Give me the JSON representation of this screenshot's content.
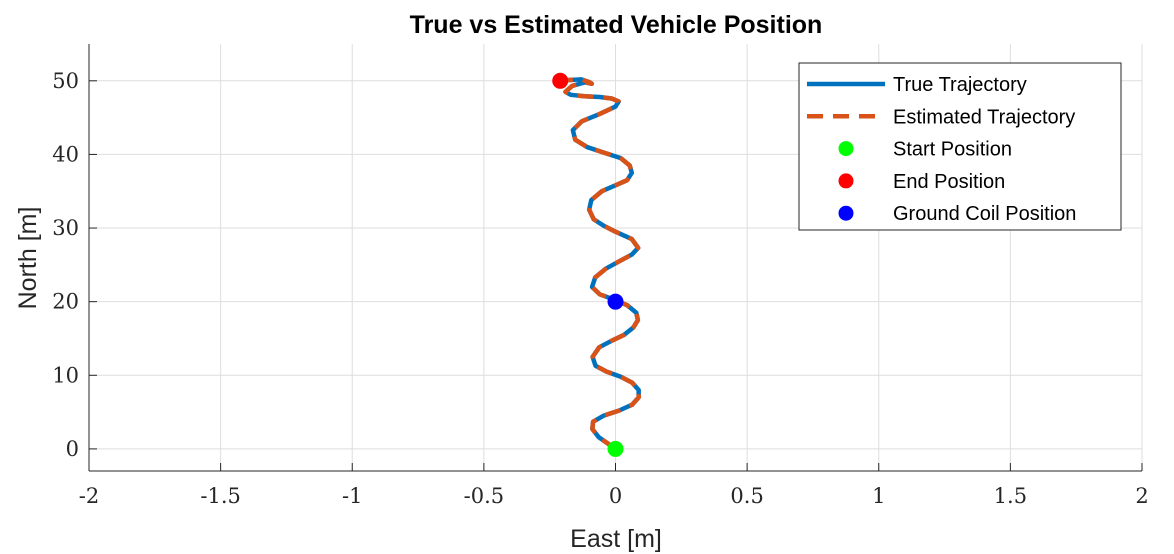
{
  "chart_data": {
    "type": "line",
    "title": "True vs Estimated Vehicle Position",
    "xlabel": "East [m]",
    "ylabel": "North [m]",
    "xlim": [
      -2,
      2
    ],
    "ylim": [
      -3,
      55
    ],
    "xticks": [
      -2,
      -1.5,
      -1,
      -0.5,
      0,
      0.5,
      1,
      1.5,
      2
    ],
    "xtick_labels": [
      "-2",
      "-1.5",
      "-1",
      "-0.5",
      "0",
      "0.5",
      "1",
      "1.5",
      "2"
    ],
    "yticks": [
      0,
      10,
      20,
      30,
      40,
      50
    ],
    "ytick_labels": [
      "0",
      "10",
      "20",
      "30",
      "40",
      "50"
    ],
    "grid": true,
    "legend_position": "top-right",
    "series": [
      {
        "name": "True Trajectory",
        "style": "solid",
        "color": "#0072BD",
        "x": [
          0.0,
          -0.032,
          -0.064,
          -0.088,
          -0.085,
          -0.046,
          0.013,
          0.063,
          0.088,
          0.088,
          0.063,
          0.02,
          -0.034,
          -0.076,
          -0.087,
          -0.062,
          -0.014,
          0.033,
          0.068,
          0.085,
          0.079,
          0.045,
          -0.006,
          -0.06,
          -0.089,
          -0.077,
          -0.036,
          0.015,
          0.062,
          0.086,
          0.062,
          0.0,
          -0.044,
          -0.083,
          -0.1,
          -0.092,
          -0.052,
          0.0,
          0.044,
          0.062,
          0.054,
          0.02,
          -0.04,
          -0.108,
          -0.153,
          -0.162,
          -0.128,
          -0.06,
          0.0,
          0.012,
          -0.015,
          -0.06,
          -0.118,
          -0.17,
          -0.19,
          -0.165,
          -0.116,
          -0.09,
          -0.098,
          -0.13,
          -0.18,
          -0.218
        ],
        "y": [
          0.0,
          0.8,
          1.6,
          2.7,
          3.7,
          4.5,
          5.2,
          6.0,
          7.0,
          8.0,
          9.0,
          9.8,
          10.5,
          11.3,
          12.5,
          13.8,
          14.7,
          15.5,
          16.5,
          17.5,
          18.5,
          19.5,
          20.3,
          21.0,
          22.0,
          23.3,
          24.5,
          25.5,
          26.4,
          27.3,
          28.5,
          29.5,
          30.3,
          31.2,
          32.5,
          33.8,
          35.0,
          35.8,
          36.5,
          37.5,
          38.5,
          39.5,
          40.2,
          41.0,
          42.0,
          43.3,
          44.5,
          45.5,
          46.5,
          47.2,
          47.6,
          47.8,
          47.9,
          48.1,
          48.5,
          49.3,
          49.8,
          49.6,
          49.8,
          50.2,
          50.1,
          50.0
        ]
      },
      {
        "name": "Estimated Trajectory",
        "style": "dashed",
        "color": "#D95319",
        "x": [
          0.0,
          -0.032,
          -0.064,
          -0.088,
          -0.085,
          -0.046,
          0.013,
          0.063,
          0.088,
          0.088,
          0.063,
          0.02,
          -0.034,
          -0.076,
          -0.087,
          -0.062,
          -0.014,
          0.033,
          0.068,
          0.085,
          0.079,
          0.045,
          -0.006,
          -0.06,
          -0.089,
          -0.077,
          -0.036,
          0.015,
          0.062,
          0.086,
          0.062,
          0.0,
          -0.044,
          -0.083,
          -0.1,
          -0.092,
          -0.052,
          0.0,
          0.044,
          0.062,
          0.054,
          0.02,
          -0.04,
          -0.108,
          -0.153,
          -0.162,
          -0.128,
          -0.06,
          0.0,
          0.012,
          -0.015,
          -0.06,
          -0.118,
          -0.17,
          -0.19,
          -0.165,
          -0.116,
          -0.09,
          -0.098,
          -0.13,
          -0.18,
          -0.218
        ],
        "y": [
          0.0,
          0.8,
          1.6,
          2.7,
          3.7,
          4.5,
          5.2,
          6.0,
          7.0,
          8.0,
          9.0,
          9.8,
          10.5,
          11.3,
          12.5,
          13.8,
          14.7,
          15.5,
          16.5,
          17.5,
          18.5,
          19.5,
          20.3,
          21.0,
          22.0,
          23.3,
          24.5,
          25.5,
          26.4,
          27.3,
          28.5,
          29.5,
          30.3,
          31.2,
          32.5,
          33.8,
          35.0,
          35.8,
          36.5,
          37.5,
          38.5,
          39.5,
          40.2,
          41.0,
          42.0,
          43.3,
          44.5,
          45.5,
          46.5,
          47.2,
          47.6,
          47.8,
          47.9,
          48.1,
          48.5,
          49.3,
          49.8,
          49.6,
          49.8,
          50.2,
          50.1,
          50.0
        ]
      }
    ],
    "markers": [
      {
        "name": "Start Position",
        "x": 0.0,
        "y": 0.0,
        "color": "#00FF00"
      },
      {
        "name": "End Position",
        "x": -0.21,
        "y": 50.0,
        "color": "#FF0000"
      },
      {
        "name": "Ground Coil Position",
        "x": 0.0,
        "y": 20.0,
        "color": "#0000FF"
      }
    ]
  }
}
